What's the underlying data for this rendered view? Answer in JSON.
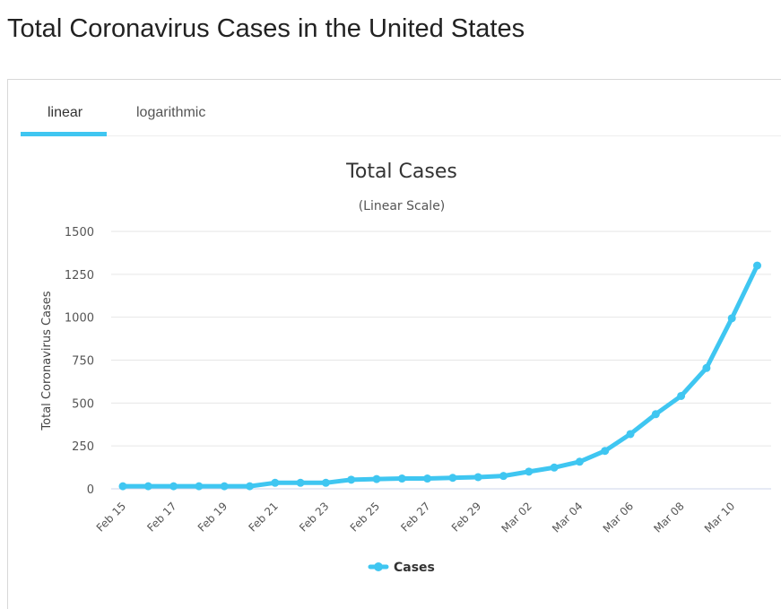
{
  "page": {
    "title": "Total Coronavirus Cases in the United States"
  },
  "tabs": [
    {
      "label": "linear",
      "active": true
    },
    {
      "label": "logarithmic",
      "active": false
    }
  ],
  "colors": {
    "series": "#3fc6f1",
    "active_tab_underline": "#3fc6f1",
    "grid": "#e6e6e6",
    "text": "#333333",
    "axis_text": "#555555"
  },
  "chart_data": {
    "type": "line",
    "title": "Total Cases",
    "subtitle": "(Linear Scale)",
    "ylabel": "Total Coronavirus Cases",
    "xlabel": "",
    "ylim": [
      0,
      1500
    ],
    "yticks": [
      0,
      250,
      500,
      750,
      1000,
      1250,
      1500
    ],
    "x": [
      "Feb 15",
      "Feb 16",
      "Feb 17",
      "Feb 18",
      "Feb 19",
      "Feb 20",
      "Feb 21",
      "Feb 22",
      "Feb 23",
      "Feb 24",
      "Feb 25",
      "Feb 26",
      "Feb 27",
      "Feb 28",
      "Feb 29",
      "Mar 01",
      "Mar 02",
      "Mar 03",
      "Mar 04",
      "Mar 05",
      "Mar 06",
      "Mar 07",
      "Mar 08",
      "Mar 09",
      "Mar 10",
      "Mar 11"
    ],
    "xtick_labels": [
      "Feb 15",
      "Feb 17",
      "Feb 19",
      "Feb 21",
      "Feb 23",
      "Feb 25",
      "Feb 27",
      "Feb 29",
      "Mar 02",
      "Mar 04",
      "Mar 06",
      "Mar 08",
      "Mar 10"
    ],
    "series": [
      {
        "name": "Cases",
        "values": [
          15,
          15,
          15,
          15,
          15,
          15,
          35,
          35,
          35,
          53,
          57,
          60,
          60,
          64,
          68,
          75,
          100,
          124,
          158,
          221,
          319,
          435,
          541,
          704,
          994,
          1301
        ]
      }
    ],
    "legend": "bottom-center",
    "grid": true
  }
}
